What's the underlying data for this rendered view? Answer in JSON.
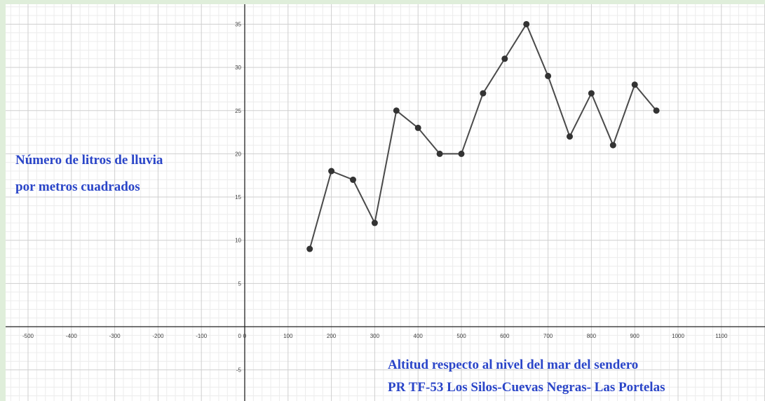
{
  "chart_data": {
    "type": "line",
    "x": [
      150,
      200,
      250,
      300,
      350,
      400,
      450,
      500,
      550,
      600,
      650,
      700,
      750,
      800,
      850,
      900,
      950
    ],
    "series": [
      {
        "values": [
          9,
          18,
          17,
          12,
          25,
          23,
          20,
          20,
          27,
          31,
          35,
          29,
          22,
          27,
          21,
          28,
          25
        ]
      }
    ],
    "xlim": [
      -575,
      1170
    ],
    "ylim": [
      -8,
      37
    ],
    "x_ticks": [
      -500,
      -400,
      -300,
      -200,
      -100,
      0,
      100,
      200,
      300,
      400,
      500,
      600,
      700,
      800,
      900,
      1000,
      1100
    ],
    "y_ticks": [
      -5,
      5,
      10,
      15,
      20,
      25,
      30,
      35
    ],
    "ylabel_lines": [
      "Número de litros de lluvia",
      "por metros cuadrados"
    ],
    "xlabel_lines": [
      "Altitud respecto al nivel del mar del sendero",
      "PR TF-53 Los Silos-Cuevas Negras- Las Portelas"
    ],
    "grid": true,
    "colors": {
      "line": "#4a4a4a",
      "point": "#333333",
      "label": "#2a45c8",
      "grid_major": "#cfcfcf",
      "grid_minor": "#ececec"
    }
  }
}
